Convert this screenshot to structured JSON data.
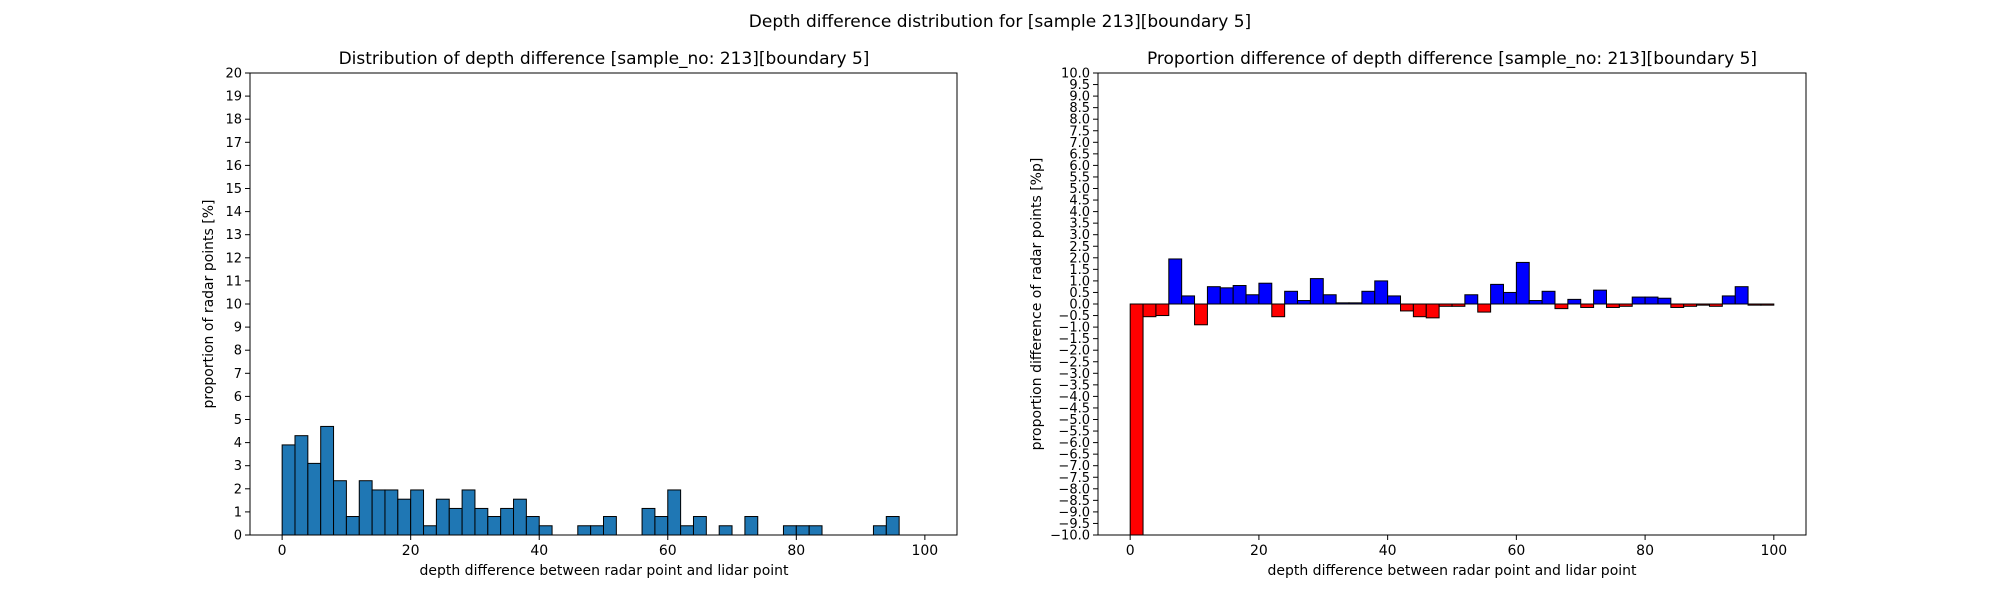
{
  "suptitle": "Depth difference distribution for [sample 213][boundary 5]",
  "chart_data": [
    {
      "type": "bar",
      "title": "Distribution of depth difference [sample_no: 213][boundary 5]",
      "xlabel": "depth difference between radar point and lidar point",
      "ylabel": "proportion of radar points [%]",
      "xlim": [
        -5,
        105
      ],
      "ylim": [
        0,
        20
      ],
      "xticks": [
        0,
        20,
        40,
        60,
        80,
        100
      ],
      "yticks": [
        0,
        1,
        2,
        3,
        4,
        5,
        6,
        7,
        8,
        9,
        10,
        11,
        12,
        13,
        14,
        15,
        16,
        17,
        18,
        19,
        20
      ],
      "bin_width": 2,
      "x": [
        0,
        2,
        4,
        6,
        8,
        10,
        12,
        14,
        16,
        18,
        20,
        22,
        24,
        26,
        28,
        30,
        32,
        34,
        36,
        38,
        40,
        42,
        44,
        46,
        48,
        50,
        52,
        54,
        56,
        58,
        60,
        62,
        64,
        66,
        68,
        70,
        72,
        74,
        76,
        78,
        80,
        82,
        84,
        86,
        88,
        90,
        92,
        94,
        96,
        98
      ],
      "values": [
        3.9,
        4.3,
        3.1,
        4.7,
        2.35,
        0.8,
        2.35,
        1.95,
        1.95,
        1.55,
        1.95,
        0.4,
        1.55,
        1.15,
        1.95,
        1.15,
        0.8,
        1.15,
        1.55,
        0.8,
        0.4,
        0,
        0,
        0.4,
        0.4,
        0.8,
        0,
        0,
        1.15,
        0.8,
        1.95,
        0.4,
        0.8,
        0,
        0.4,
        0,
        0.8,
        0,
        0,
        0.4,
        0.4,
        0.4,
        0,
        0,
        0,
        0,
        0.4,
        0.8,
        0,
        0
      ],
      "bar_color": "#1f77b4",
      "edge_color": "#000000",
      "grid": false
    },
    {
      "type": "bar",
      "title": "Proportion difference of depth difference [sample_no: 213][boundary 5]",
      "xlabel": "depth difference between radar point and lidar point",
      "ylabel": "proportion difference of radar points [%p]",
      "xlim": [
        -5,
        105
      ],
      "ylim": [
        -10,
        10
      ],
      "xticks": [
        0,
        20,
        40,
        60,
        80,
        100
      ],
      "yticks": [
        "10.0",
        "9.5",
        "9.0",
        "8.5",
        "8.0",
        "7.5",
        "7.0",
        "6.5",
        "6.0",
        "5.5",
        "5.0",
        "4.5",
        "4.0",
        "3.5",
        "3.0",
        "2.5",
        "2.0",
        "1.5",
        "1.0",
        "0.5",
        "0.0",
        "−0.5",
        "−1.0",
        "−1.5",
        "−2.0",
        "−2.5",
        "−3.0",
        "−3.5",
        "−4.0",
        "−4.5",
        "−5.0",
        "−5.5",
        "−6.0",
        "−6.5",
        "−7.0",
        "−7.5",
        "−8.0",
        "−8.5",
        "−9.0",
        "−9.5",
        "−10.0"
      ],
      "bin_width": 2,
      "x": [
        0,
        2,
        4,
        6,
        8,
        10,
        12,
        14,
        16,
        18,
        20,
        22,
        24,
        26,
        28,
        30,
        32,
        34,
        36,
        38,
        40,
        42,
        44,
        46,
        48,
        50,
        52,
        54,
        56,
        58,
        60,
        62,
        64,
        66,
        68,
        70,
        72,
        74,
        76,
        78,
        80,
        82,
        84,
        86,
        88,
        90,
        92,
        94,
        96,
        98
      ],
      "values": [
        -10.0,
        -0.55,
        -0.5,
        1.95,
        0.35,
        -0.9,
        0.75,
        0.7,
        0.8,
        0.4,
        0.9,
        -0.55,
        0.55,
        0.15,
        1.1,
        0.4,
        0.05,
        0.05,
        0.55,
        1.0,
        0.35,
        -0.3,
        -0.55,
        -0.6,
        -0.1,
        -0.1,
        0.4,
        -0.35,
        0.85,
        0.5,
        1.8,
        0.15,
        0.55,
        -0.2,
        0.2,
        -0.15,
        0.6,
        -0.15,
        -0.1,
        0.3,
        0.3,
        0.25,
        -0.15,
        -0.1,
        -0.05,
        -0.1,
        0.35,
        0.75,
        -0.05,
        -0.05
      ],
      "positive_color": "#0000ff",
      "negative_color": "#ff0000",
      "edge_color": "#000000",
      "grid": false
    }
  ]
}
